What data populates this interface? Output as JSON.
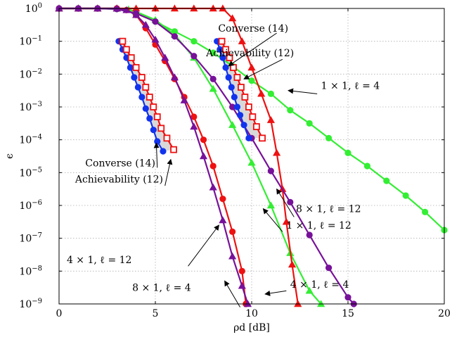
{
  "chart_data": {
    "type": "line",
    "xlabel": "ρd [dB]",
    "ylabel": "ϵ",
    "xlim": [
      0,
      20
    ],
    "ylim_log10": [
      -9,
      0
    ],
    "y_scale": "log",
    "grid": true,
    "x_ticks": [
      0,
      5,
      10,
      15,
      20
    ],
    "x_tick_labels": [
      "0",
      "5",
      "10",
      "15",
      "20"
    ],
    "y_tick_exponents": [
      0,
      -1,
      -2,
      -3,
      -4,
      -5,
      -6,
      -7,
      -8,
      -9
    ],
    "y_tick_base": "10",
    "colors": {
      "green": "#33ee33",
      "red": "#ee1111",
      "purple": "#771199",
      "blue": "#1133ee",
      "shade": "#d8d8d8"
    },
    "series": [
      {
        "color": "green",
        "marker": "circle",
        "points": [
          [
            0,
            0
          ],
          [
            1,
            0
          ],
          [
            2,
            0
          ],
          [
            3,
            -0.02
          ],
          [
            4,
            -0.15
          ],
          [
            5,
            -0.4
          ],
          [
            6,
            -0.7
          ],
          [
            7,
            -1
          ],
          [
            8,
            -1.35
          ],
          [
            9,
            -1.75
          ],
          [
            10,
            -2.2
          ],
          [
            11,
            -2.6
          ],
          [
            12,
            -3.1
          ],
          [
            13,
            -3.5
          ],
          [
            14,
            -3.95
          ],
          [
            15,
            -4.4
          ],
          [
            16,
            -4.8
          ],
          [
            17,
            -5.25
          ],
          [
            18,
            -5.7
          ],
          [
            19,
            -6.2
          ],
          [
            20,
            -6.75
          ]
        ]
      },
      {
        "color": "green",
        "marker": "triangle",
        "points": [
          [
            0,
            0
          ],
          [
            1,
            0
          ],
          [
            2,
            0
          ],
          [
            3,
            0
          ],
          [
            3.6,
            -0.03
          ],
          [
            4,
            -0.1
          ],
          [
            5,
            -0.35
          ],
          [
            6,
            -0.8
          ],
          [
            7,
            -1.5
          ],
          [
            8,
            -2.45
          ],
          [
            9,
            -3.55
          ],
          [
            10,
            -4.7
          ],
          [
            11,
            -6
          ],
          [
            12,
            -7.45
          ],
          [
            13,
            -8.6
          ],
          [
            13.6,
            -9
          ]
        ]
      },
      {
        "color": "red",
        "marker": "circle",
        "points": [
          [
            0,
            0
          ],
          [
            1,
            0
          ],
          [
            2,
            0
          ],
          [
            3,
            0
          ],
          [
            3.5,
            -0.05
          ],
          [
            4,
            -0.2
          ],
          [
            4.5,
            -0.6
          ],
          [
            5,
            -1.1
          ],
          [
            5.5,
            -1.6
          ],
          [
            6,
            -2.15
          ],
          [
            6.5,
            -2.7
          ],
          [
            7,
            -3.3
          ],
          [
            7.5,
            -4
          ],
          [
            8,
            -4.8
          ],
          [
            8.5,
            -5.8
          ],
          [
            9,
            -6.8
          ],
          [
            9.5,
            -8
          ],
          [
            9.7,
            -9
          ]
        ]
      },
      {
        "color": "red",
        "marker": "triangle",
        "points": [
          [
            0,
            0
          ],
          [
            1,
            0
          ],
          [
            2,
            0
          ],
          [
            3,
            0
          ],
          [
            4,
            0
          ],
          [
            5,
            0
          ],
          [
            6,
            0
          ],
          [
            7,
            0
          ],
          [
            8,
            0
          ],
          [
            8.5,
            0
          ],
          [
            9,
            -0.3
          ],
          [
            9.5,
            -1
          ],
          [
            10,
            -1.8
          ],
          [
            10.5,
            -2.6
          ],
          [
            11,
            -3.4
          ],
          [
            11.3,
            -4.4
          ],
          [
            11.6,
            -5.5
          ],
          [
            11.8,
            -6.5
          ],
          [
            12.1,
            -7.8
          ],
          [
            12.4,
            -9
          ]
        ]
      },
      {
        "color": "purple",
        "marker": "triangle",
        "points": [
          [
            0,
            0
          ],
          [
            1,
            0
          ],
          [
            2,
            0
          ],
          [
            3,
            0
          ],
          [
            3.5,
            -0.05
          ],
          [
            4,
            -0.2
          ],
          [
            4.5,
            -0.5
          ],
          [
            5,
            -0.95
          ],
          [
            5.5,
            -1.5
          ],
          [
            6,
            -2.1
          ],
          [
            6.5,
            -2.8
          ],
          [
            7,
            -3.6
          ],
          [
            7.5,
            -4.5
          ],
          [
            8,
            -5.45
          ],
          [
            8.5,
            -6.45
          ],
          [
            9,
            -7.55
          ],
          [
            9.5,
            -8.45
          ],
          [
            9.8,
            -9
          ]
        ]
      },
      {
        "color": "purple",
        "marker": "circle",
        "points": [
          [
            0,
            0
          ],
          [
            1,
            0
          ],
          [
            2,
            0
          ],
          [
            3,
            -0.02
          ],
          [
            4,
            -0.15
          ],
          [
            5,
            -0.4
          ],
          [
            6,
            -0.85
          ],
          [
            7,
            -1.45
          ],
          [
            8,
            -2.15
          ],
          [
            9,
            -3
          ],
          [
            10,
            -3.95
          ],
          [
            11,
            -4.95
          ],
          [
            12,
            -5.9
          ],
          [
            13,
            -6.9
          ],
          [
            14,
            -7.9
          ],
          [
            15,
            -8.8
          ],
          [
            15.3,
            -9
          ]
        ]
      },
      {
        "color": "blue",
        "marker": "circle",
        "points": [
          [
            3.1,
            -1
          ],
          [
            3.3,
            -1.25
          ],
          [
            3.5,
            -1.5
          ],
          [
            3.7,
            -1.8
          ],
          [
            3.9,
            -2.1
          ],
          [
            4.1,
            -2.4
          ],
          [
            4.3,
            -2.7
          ],
          [
            4.5,
            -3.05
          ],
          [
            4.7,
            -3.35
          ],
          [
            4.9,
            -3.7
          ],
          [
            5.1,
            -4.05
          ],
          [
            5.4,
            -4.35
          ]
        ]
      },
      {
        "color": "red",
        "marker": "square",
        "points": [
          [
            3.3,
            -1
          ],
          [
            3.5,
            -1.25
          ],
          [
            3.75,
            -1.5
          ],
          [
            4,
            -1.8
          ],
          [
            4.3,
            -2.1
          ],
          [
            4.5,
            -2.4
          ],
          [
            4.7,
            -2.7
          ],
          [
            4.9,
            -3
          ],
          [
            5.1,
            -3.3
          ],
          [
            5.3,
            -3.65
          ],
          [
            5.6,
            -3.95
          ],
          [
            5.95,
            -4.3
          ]
        ]
      },
      {
        "color": "blue",
        "marker": "circle",
        "points": [
          [
            8.2,
            -1
          ],
          [
            8.35,
            -1.25
          ],
          [
            8.5,
            -1.5
          ],
          [
            8.65,
            -1.8
          ],
          [
            8.8,
            -2.1
          ],
          [
            8.95,
            -2.4
          ],
          [
            9.1,
            -2.7
          ],
          [
            9.25,
            -3
          ],
          [
            9.4,
            -3.25
          ],
          [
            9.6,
            -3.55
          ],
          [
            9.85,
            -3.95
          ]
        ]
      },
      {
        "color": "red",
        "marker": "square",
        "points": [
          [
            8.45,
            -1
          ],
          [
            8.65,
            -1.25
          ],
          [
            8.85,
            -1.5
          ],
          [
            9.05,
            -1.8
          ],
          [
            9.25,
            -2.1
          ],
          [
            9.45,
            -2.4
          ],
          [
            9.65,
            -2.7
          ],
          [
            9.85,
            -3
          ],
          [
            10.05,
            -3.3
          ],
          [
            10.25,
            -3.6
          ],
          [
            10.55,
            -3.95
          ]
        ]
      }
    ],
    "shaded_regions": [
      {
        "between_series": [
          6,
          7
        ]
      },
      {
        "between_series": [
          8,
          9
        ]
      }
    ],
    "annotations": [
      {
        "text": "Converse (14)",
        "anchor": "end"
      },
      {
        "text": "Achievability (12)",
        "anchor": "end"
      },
      {
        "text": "1 × 1, ℓ = 4",
        "anchor": "start"
      },
      {
        "text": "Converse (14)",
        "anchor": "end"
      },
      {
        "text": "Achievability (12)",
        "anchor": "end"
      },
      {
        "text": "8 × 1, ℓ = 12",
        "anchor": "start"
      },
      {
        "text": "1 × 1, ℓ = 12",
        "anchor": "start"
      },
      {
        "text": "4 × 1, ℓ = 12",
        "anchor": "start"
      },
      {
        "text": "8 × 1, ℓ = 4",
        "anchor": "start"
      },
      {
        "text": "4 × 1, ℓ = 4",
        "anchor": "start"
      }
    ],
    "annotation_arrows": [
      {
        "from": [
          11.3,
          -0.75
        ],
        "to": [
          8.8,
          -1.75
        ]
      },
      {
        "from": [
          11.6,
          -1.55
        ],
        "to": [
          9.6,
          -2.15
        ]
      },
      {
        "from": [
          13.4,
          -2.6
        ],
        "to": [
          11.9,
          -2.5
        ]
      },
      {
        "from": [
          5.1,
          -4.85
        ],
        "to": [
          5.05,
          -4.1
        ]
      },
      {
        "from": [
          5.5,
          -5.4
        ],
        "to": [
          5.8,
          -4.6
        ]
      },
      {
        "from": [
          12.2,
          -6.35
        ],
        "to": [
          11.3,
          -5.5
        ]
      },
      {
        "from": [
          11.6,
          -6.8
        ],
        "to": [
          10.6,
          -6.1
        ]
      },
      {
        "from": [
          6.7,
          -7.85
        ],
        "to": [
          8.3,
          -6.6
        ]
      },
      {
        "from": [
          9.4,
          -9.1
        ],
        "to": [
          8.6,
          -8.3
        ]
      },
      {
        "from": [
          11.8,
          -8.6
        ],
        "to": [
          10.7,
          -8.7
        ]
      }
    ]
  }
}
